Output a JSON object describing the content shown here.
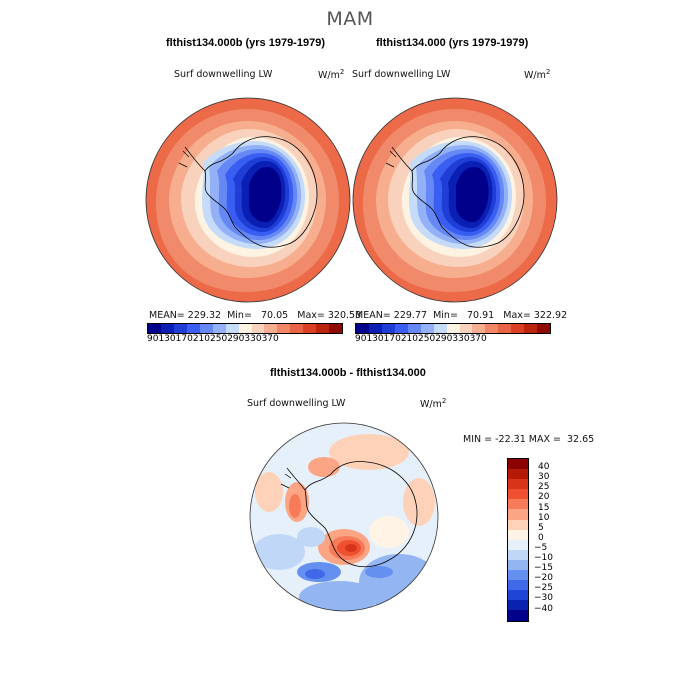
{
  "season_title": "MAM",
  "panels": [
    {
      "title": "flthist134.000b (yrs 1979-1979)",
      "variable": "Surf downwelling LW",
      "units_base": "W/m",
      "units_exp": "2",
      "stats": {
        "mean_label": "MEAN=",
        "mean": "229.32",
        "min_label": "Min=",
        "min": "70.05",
        "max_label": "Max=",
        "max": "320.53"
      }
    },
    {
      "title": "flthist134.000 (yrs 1979-1979)",
      "variable": "Surf downwelling LW",
      "units_base": "W/m",
      "units_exp": "2",
      "stats": {
        "mean_label": "MEAN=",
        "mean": "229.77",
        "min_label": "Min=",
        "min": "70.91",
        "max_label": "Max=",
        "max": "322.92"
      }
    }
  ],
  "abs_colorbar": {
    "colors": [
      "#00008b",
      "#0a1fb4",
      "#1e3ed6",
      "#3a5ef2",
      "#6688f4",
      "#93b1f6",
      "#c6dbf8",
      "#fdf3e2",
      "#f9d2bd",
      "#f6ae8e",
      "#f08868",
      "#e96444",
      "#dc3f24",
      "#bd2410",
      "#8f0c06"
    ],
    "ticks": [
      "90",
      "130",
      "170",
      "210",
      "250",
      "290",
      "330",
      "370"
    ]
  },
  "diff_panel": {
    "title": "flthist134.000b - flthist134.000",
    "variable": "Surf downwelling LW",
    "units_base": "W/m",
    "units_exp": "2",
    "stats": {
      "min_label": "MIN =",
      "min": "-22.31",
      "max_label": "MAX =",
      "max": "32.65"
    }
  },
  "diff_colorbar": {
    "colors": [
      "#8b0000",
      "#b51a07",
      "#d8341a",
      "#ef5030",
      "#f77b58",
      "#fba585",
      "#fdd2b8",
      "#fff3e6",
      "#e6f0fb",
      "#c0d7f7",
      "#93b6f3",
      "#6690ef",
      "#3f69e8",
      "#1e45d6",
      "#0a22b0",
      "#00008b"
    ],
    "ticks": [
      "40",
      "30",
      "25",
      "20",
      "15",
      "10",
      "5",
      "0",
      "−5",
      "−10",
      "−15",
      "−20",
      "−25",
      "−30",
      "−40"
    ]
  }
}
